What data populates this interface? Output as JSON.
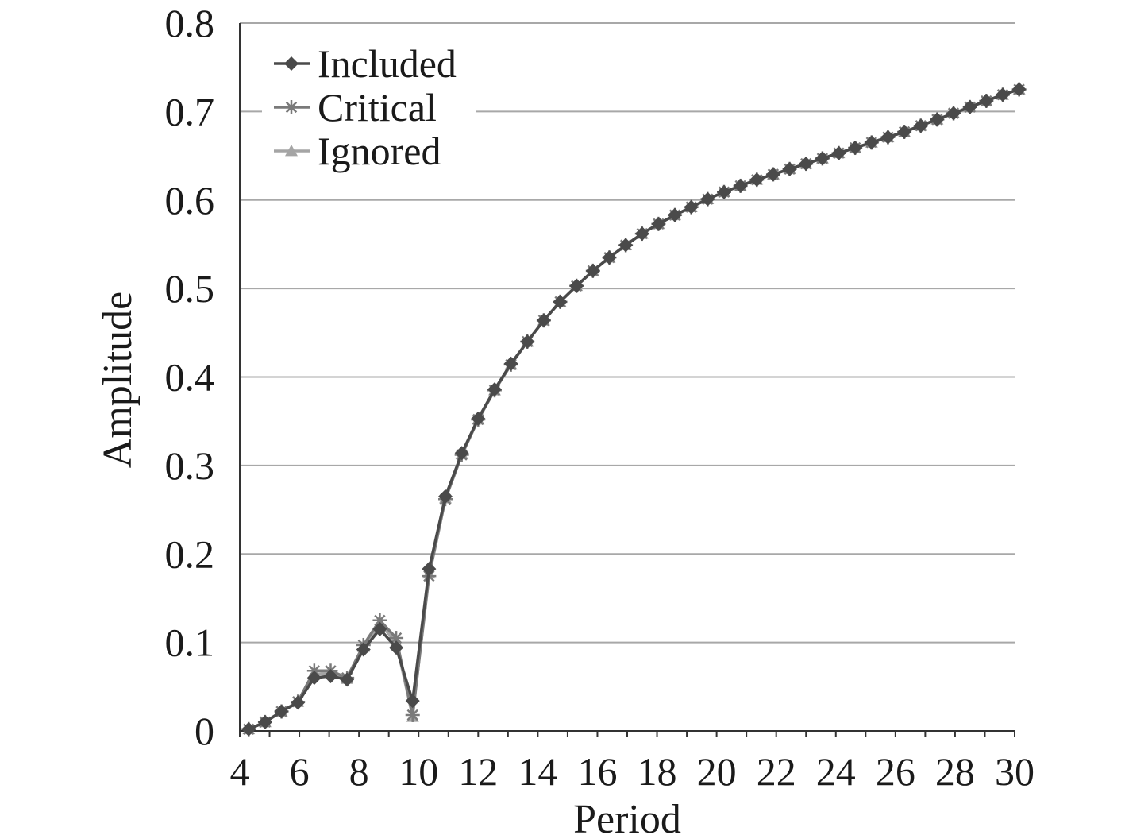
{
  "chart_data": {
    "type": "line",
    "title": "",
    "xlabel": "Period",
    "ylabel": "Amplitude",
    "xlim": [
      4,
      30
    ],
    "ylim": [
      0,
      0.8
    ],
    "x_ticks": [
      "4",
      "6",
      "8",
      "10",
      "12",
      "14",
      "16",
      "18",
      "20",
      "22",
      "24",
      "26",
      "28",
      "30"
    ],
    "y_ticks": [
      "0",
      "0.1",
      "0.2",
      "0.3",
      "0.4",
      "0.5",
      "0.6",
      "0.7",
      "0.8"
    ],
    "grid": "horizontal",
    "legend_position": "top-left",
    "colors": {
      "Included": "#4a4a4a",
      "Critical": "#7a7a7a",
      "Ignored": "#a5a5a5"
    },
    "x": [
      4.3,
      4.85,
      5.4,
      5.95,
      6.5,
      7.05,
      7.6,
      8.15,
      8.7,
      9.25,
      9.8,
      10.35,
      10.9,
      11.45,
      12.0,
      12.55,
      13.1,
      13.65,
      14.2,
      14.75,
      15.3,
      15.85,
      16.4,
      16.95,
      17.5,
      18.05,
      18.6,
      19.15,
      19.7,
      20.25,
      20.8,
      21.35,
      21.9,
      22.45,
      23.0,
      23.55,
      24.1,
      24.65,
      25.2,
      25.75,
      26.3,
      26.85,
      27.4,
      27.95,
      28.5,
      29.05,
      29.6,
      30.15
    ],
    "series": [
      {
        "name": "Included",
        "marker": "diamond",
        "values": [
          0.002,
          0.01,
          0.022,
          0.032,
          0.06,
          0.062,
          0.058,
          0.092,
          0.115,
          0.094,
          0.034,
          0.183,
          0.265,
          0.314,
          0.353,
          0.386,
          0.415,
          0.44,
          0.464,
          0.485,
          0.503,
          0.52,
          0.535,
          0.549,
          0.562,
          0.573,
          0.583,
          0.592,
          0.601,
          0.609,
          0.616,
          0.623,
          0.629,
          0.635,
          0.641,
          0.647,
          0.653,
          0.659,
          0.665,
          0.671,
          0.677,
          0.684,
          0.691,
          0.698,
          0.705,
          0.712,
          0.719,
          0.725
        ]
      },
      {
        "name": "Critical",
        "marker": "asterisk",
        "values": [
          0.002,
          0.01,
          0.022,
          0.033,
          0.068,
          0.068,
          0.06,
          0.097,
          0.125,
          0.105,
          0.018,
          0.175,
          0.262,
          0.312,
          0.352,
          0.385,
          0.414,
          0.44,
          0.464,
          0.485,
          0.503,
          0.52,
          0.535,
          0.549,
          0.562,
          0.573,
          0.583,
          0.592,
          0.601,
          0.609,
          0.616,
          0.623,
          0.629,
          0.635,
          0.641,
          0.647,
          0.653,
          0.659,
          0.665,
          0.671,
          0.677,
          0.684,
          0.691,
          0.698,
          0.705,
          0.712,
          0.719,
          0.725
        ]
      },
      {
        "name": "Ignored",
        "marker": "triangle",
        "values": [
          0.002,
          0.01,
          0.022,
          0.033,
          0.064,
          0.066,
          0.059,
          0.095,
          0.121,
          0.1,
          0.016,
          0.178,
          0.263,
          0.313,
          0.352,
          0.385,
          0.414,
          0.44,
          0.464,
          0.485,
          0.503,
          0.52,
          0.535,
          0.549,
          0.562,
          0.573,
          0.583,
          0.592,
          0.601,
          0.609,
          0.616,
          0.623,
          0.629,
          0.635,
          0.641,
          0.647,
          0.653,
          0.659,
          0.665,
          0.671,
          0.677,
          0.684,
          0.691,
          0.698,
          0.705,
          0.712,
          0.719,
          0.725
        ]
      }
    ]
  }
}
